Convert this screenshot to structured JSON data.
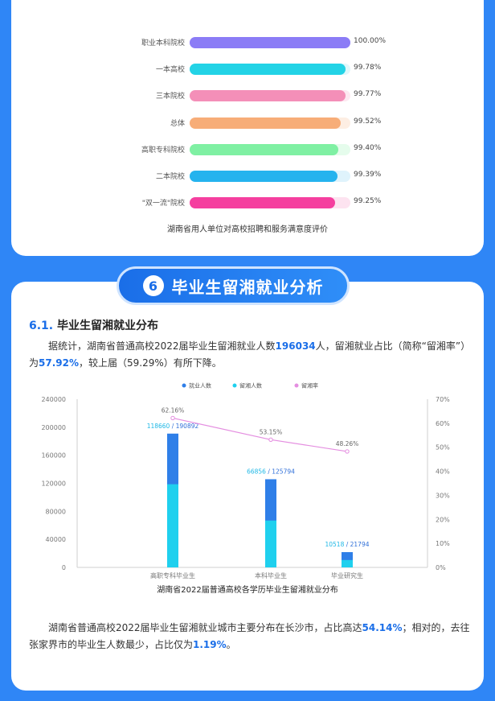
{
  "satisfaction": {
    "caption": "湖南省用人单位对高校招聘和服务满意度评价",
    "rows": [
      {
        "label": "职业本科院校",
        "value": "100.00%",
        "pct": 100.0,
        "color": "#8b7cf6",
        "track": "#ece9fe"
      },
      {
        "label": "一本高校",
        "value": "99.78%",
        "pct": 99.78,
        "color": "#23d3e6",
        "track": "#dff8fb"
      },
      {
        "label": "三本院校",
        "value": "99.77%",
        "pct": 99.77,
        "color": "#f48fb8",
        "track": "#fde8f1"
      },
      {
        "label": "总体",
        "value": "99.52%",
        "pct": 99.52,
        "color": "#f7ad78",
        "track": "#fdeee3"
      },
      {
        "label": "高职专科院校",
        "value": "99.40%",
        "pct": 99.4,
        "color": "#7ff0a3",
        "track": "#e5fcec"
      },
      {
        "label": "二本院校",
        "value": "99.39%",
        "pct": 99.39,
        "color": "#25b3ee",
        "track": "#dff3fc"
      },
      {
        "label": "\"双一流\"院校",
        "value": "99.25%",
        "pct": 99.25,
        "color": "#f53f9f",
        "track": "#fde3f0"
      }
    ]
  },
  "section": {
    "number": "6",
    "title": "毕业生留湘就业分析"
  },
  "subsection": {
    "number": "6.1.",
    "title": "毕业生留湘就业分布"
  },
  "para1": {
    "t1": "据统计，湖南省普通高校2022届毕业生留湘就业人数",
    "h1": "196034",
    "t2": "人，留湘就业占比（简称“留湘率”）为",
    "h2": "57.92%",
    "t3": "，较上届（59.29%）有所下降。"
  },
  "para2": {
    "t1": "湖南省普通高校2022届毕业生留湘就业城市主要分布在长沙市，占比高达",
    "h1": "54.14%",
    "t2": "；相对的，去往张家界市的毕业生人数最少，占比仅为",
    "h2": "1.19%",
    "t3": "。"
  },
  "chart_data": {
    "type": "bar",
    "caption": "湖南省2022届普通高校各学历毕业生留湘就业分布",
    "categories": [
      "高职专科毕业生",
      "本科毕业生",
      "毕业研究生"
    ],
    "series": [
      {
        "name": "就业人数",
        "values": [
          190892,
          125794,
          21794
        ],
        "color": "#2f7fe8"
      },
      {
        "name": "留湘人数",
        "values": [
          118660,
          66856,
          10518
        ],
        "color": "#1fd0ee"
      },
      {
        "name": "留湘率",
        "values": [
          62.16,
          53.15,
          48.26
        ],
        "color": "#e48ee0"
      }
    ],
    "bar_labels": [
      {
        "a": "118660",
        "b": "190892"
      },
      {
        "a": "66856",
        "b": "125794"
      },
      {
        "a": "10518",
        "b": "21794"
      }
    ],
    "rate_labels": [
      "62.16%",
      "53.15%",
      "48.26%"
    ],
    "y_left_ticks": [
      "0",
      "40000",
      "80000",
      "120000",
      "160000",
      "200000",
      "240000"
    ],
    "y_left_values": [
      0,
      40000,
      80000,
      120000,
      160000,
      200000,
      240000
    ],
    "y_right_ticks": [
      "0%",
      "10%",
      "20%",
      "30%",
      "40%",
      "50%",
      "60%",
      "70%"
    ],
    "ylim_left": [
      0,
      240000
    ],
    "ylim_right": [
      0,
      70
    ]
  }
}
